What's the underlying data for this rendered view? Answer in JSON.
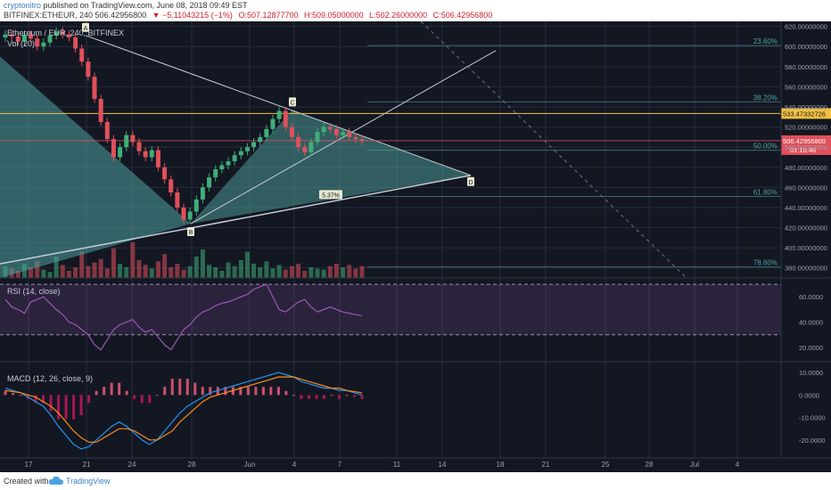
{
  "header": {
    "author": "cryptonitro",
    "published": "published on TradingView.com, June 08, 2018 09:49 EST",
    "symbol": "BITFINEX:ETHEUR, 240",
    "price": "506.42956800",
    "change": "▼ −5.11043215 (−1%)",
    "open": "O:507.12877700",
    "high": "H:509.05000000",
    "low": "L:502.26000000",
    "close": "C:506.42956800"
  },
  "footer": {
    "created_with": "Created with",
    "brand": "TradingView"
  },
  "colors": {
    "background": "#131722",
    "grid": "#262c3d",
    "teal": "#4fa3a0",
    "yellow": "#f0c040",
    "red": "#e0505a",
    "green": "#3fae7a",
    "rsi": "#9b59b6",
    "macd": "#2196f3",
    "signal": "#ff8c1a"
  },
  "chart_data": {
    "type": "candlestick",
    "title": "Ethereum / EUR, 240, BITFINEX",
    "volume_label": "Vol (20)",
    "rsi_label": "RSI (14, close)",
    "macd_label": "MACD (12, 26, close, 9)",
    "price_ylim": [
      370,
      625
    ],
    "price_ticks": [
      "620.00000000",
      "600.00000000",
      "580.00000000",
      "560.00000000",
      "540.00000000",
      "520.00000000",
      "500.00000000",
      "480.00000000",
      "460.00000000",
      "440.00000000",
      "420.00000000",
      "400.00000000",
      "380.00000000"
    ],
    "price_tick_values": [
      620,
      600,
      580,
      560,
      540,
      520,
      500,
      480,
      460,
      440,
      420,
      400,
      380
    ],
    "rsi_ticks": [
      "60.0000",
      "40.0000",
      "20.0000"
    ],
    "rsi_tick_values": [
      60,
      40,
      20
    ],
    "rsi_ylim": [
      10,
      75
    ],
    "rsi_bands": [
      70,
      30
    ],
    "macd_ticks": [
      "10.0000",
      "0.0000",
      "-10.0000",
      "-20.0000"
    ],
    "macd_tick_values": [
      10,
      0,
      -10,
      -20
    ],
    "macd_ylim": [
      -28,
      14
    ],
    "x_ticks": [
      "17",
      "21",
      "24",
      "28",
      "Jun",
      "4",
      "7",
      "11",
      "14",
      "18",
      "21",
      "25",
      "28",
      "Jul",
      "4"
    ],
    "fib_labels": [
      {
        "label": "23.60%",
        "value": 601
      },
      {
        "label": "38.20%",
        "value": 545
      },
      {
        "label": "50.00%",
        "value": 497
      },
      {
        "label": "61.80%",
        "value": 451
      },
      {
        "label": "78.60%",
        "value": 381
      }
    ],
    "horizontal_level": {
      "label": "533.47332726",
      "value": 533.47
    },
    "last_price": {
      "label": "506.42956800",
      "value": 506.43
    },
    "countdown": "01:10:46",
    "point_labels": [
      {
        "label": "A",
        "x": "19 May",
        "value": 611
      },
      {
        "label": "B",
        "x": "28 May",
        "value": 424
      },
      {
        "label": "C",
        "x": "3 Jun",
        "value": 537
      },
      {
        "label": "D",
        "x": "15 Jun",
        "value": 472
      }
    ],
    "annotation": "5.37%",
    "close_series": [
      612,
      610,
      605,
      612,
      608,
      600,
      604,
      611,
      615,
      612,
      609,
      598,
      585,
      570,
      548,
      525,
      508,
      490,
      500,
      512,
      505,
      496,
      490,
      497,
      480,
      468,
      455,
      440,
      428,
      436,
      448,
      460,
      470,
      478,
      482,
      486,
      492,
      496,
      500,
      505,
      510,
      518,
      528,
      536,
      520,
      510,
      500,
      495,
      505,
      515,
      520,
      518,
      512,
      515,
      510,
      508,
      506
    ],
    "rsi_series": [
      58,
      52,
      50,
      47,
      56,
      58,
      60,
      55,
      50,
      46,
      40,
      38,
      34,
      30,
      22,
      18,
      26,
      34,
      38,
      40,
      42,
      36,
      32,
      34,
      28,
      22,
      18,
      26,
      34,
      38,
      44,
      48,
      50,
      53,
      55,
      56,
      58,
      60,
      62,
      66,
      68,
      70,
      60,
      50,
      48,
      52,
      56,
      58,
      52,
      48,
      50,
      52,
      50,
      48,
      47,
      46,
      45
    ],
    "macd_series": [
      3,
      2,
      1,
      -1,
      -3,
      -5,
      -9,
      -14,
      -18,
      -22,
      -24,
      -23,
      -20,
      -17,
      -14,
      -12,
      -14,
      -17,
      -20,
      -22,
      -20,
      -16,
      -12,
      -8,
      -5,
      -3,
      -1,
      1,
      2,
      3,
      4,
      5,
      6,
      7,
      8,
      9,
      10,
      9,
      8,
      6,
      5,
      4,
      3,
      3,
      2,
      2,
      1,
      0
    ],
    "signal_series": [
      2,
      1.5,
      1,
      0,
      -1,
      -3,
      -5,
      -8,
      -12,
      -16,
      -19,
      -21,
      -21,
      -19,
      -17,
      -15,
      -15,
      -16,
      -18,
      -20,
      -20,
      -18,
      -16,
      -12,
      -9,
      -6,
      -3,
      -1,
      0,
      1,
      2,
      3,
      4,
      5,
      6,
      7,
      8,
      8,
      8,
      7,
      6,
      5,
      4,
      3,
      3,
      2,
      1.5,
      1
    ],
    "volume_series": [
      10,
      8,
      6,
      12,
      9,
      14,
      7,
      5,
      18,
      11,
      6,
      9,
      22,
      10,
      13,
      16,
      8,
      25,
      12,
      9,
      30,
      15,
      11,
      8,
      14,
      20,
      9,
      12,
      7,
      10,
      18,
      24,
      11,
      9,
      6,
      13,
      10,
      15,
      22,
      12,
      9,
      14,
      8,
      11,
      7,
      10,
      12,
      6,
      9,
      8,
      7,
      10,
      12,
      9,
      11,
      8,
      10
    ]
  }
}
